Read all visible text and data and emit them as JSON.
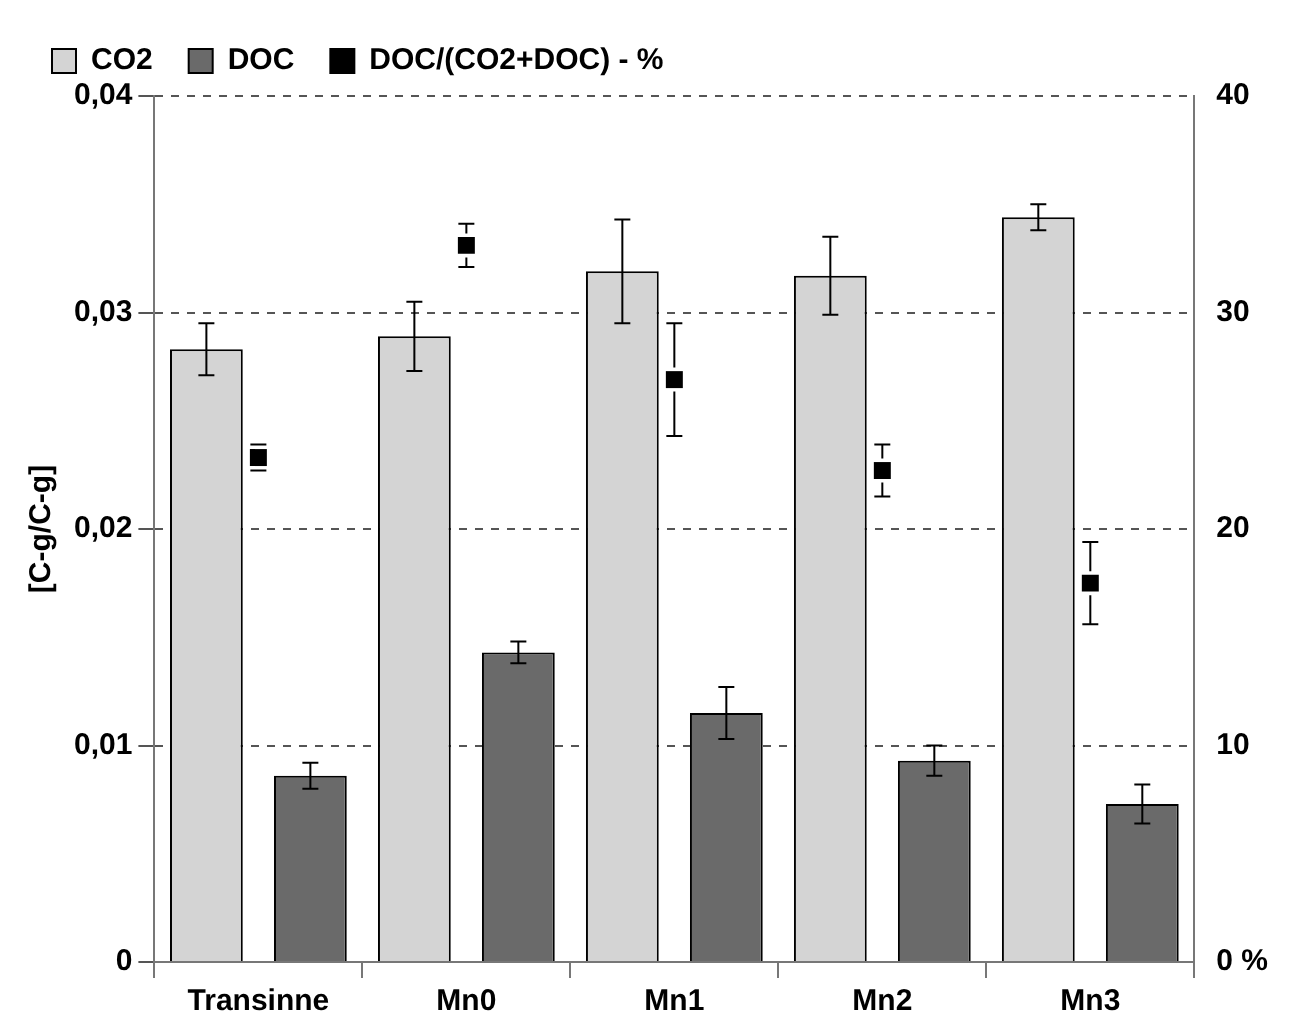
{
  "chart_data": {
    "type": "bar",
    "ylabel": "[C-g/C-g]",
    "categories": [
      "Transinne",
      "Mn0",
      "Mn1",
      "Mn2",
      "Mn3"
    ],
    "series": [
      {
        "name": "CO2",
        "color": "#d4d4d4",
        "values": [
          0.0283,
          0.0289,
          0.0319,
          0.0317,
          0.0344
        ],
        "errors": [
          0.0012,
          0.0016,
          0.0024,
          0.0018,
          0.0006
        ]
      },
      {
        "name": "DOC",
        "color": "#6a6a6a",
        "values": [
          0.0086,
          0.0143,
          0.0115,
          0.0093,
          0.0073
        ],
        "errors": [
          0.0006,
          0.0005,
          0.0012,
          0.0007,
          0.0009
        ]
      },
      {
        "name": "DOC/(CO2+DOC) - %",
        "type": "scatter",
        "axis": "y2",
        "color": "#000000",
        "values": [
          23.3,
          33.1,
          26.9,
          22.7,
          17.5
        ],
        "errors": [
          0.6,
          1.0,
          2.6,
          1.2,
          1.9
        ]
      }
    ],
    "ylim": [
      0,
      0.04
    ],
    "yticks": [
      {
        "value": 0,
        "label": "0"
      },
      {
        "value": 0.01,
        "label": "0,01"
      },
      {
        "value": 0.02,
        "label": "0,02"
      },
      {
        "value": 0.03,
        "label": "0,03"
      },
      {
        "value": 0.04,
        "label": "0,04"
      }
    ],
    "y2lim": [
      0,
      40
    ],
    "y2ticks": [
      {
        "value": 0,
        "label": "0 %"
      },
      10,
      20,
      30,
      40
    ],
    "grid": "y",
    "line_style": "dashed",
    "legend": "top left"
  }
}
